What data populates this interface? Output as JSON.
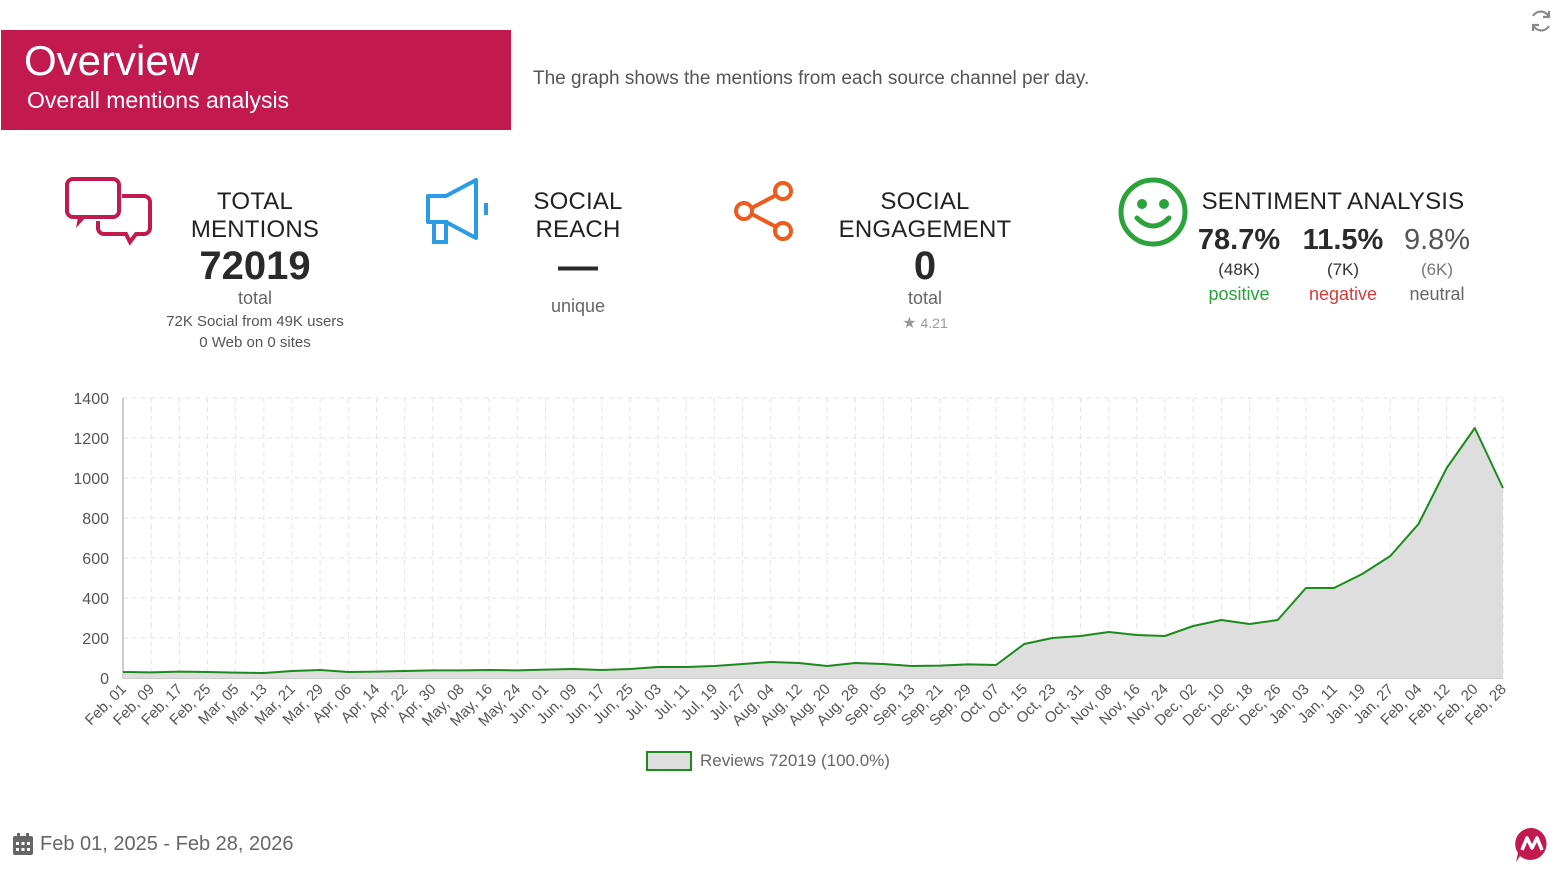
{
  "header": {
    "title": "Overview",
    "subtitle": "Overall mentions analysis",
    "description": "The graph shows the mentions from each source channel per day."
  },
  "kpis": {
    "total_mentions": {
      "label": "TOTAL MENTIONS",
      "value": "72019",
      "unit": "total",
      "social_count": "72K",
      "social_text": "Social from",
      "users_count": "49K",
      "users_text": "users",
      "web_count": "0",
      "web_text": "Web on",
      "sites_count": "0",
      "sites_text": "sites"
    },
    "social_reach": {
      "label": "SOCIAL REACH",
      "value": "—",
      "unit": "unique"
    },
    "social_engagement": {
      "label": "SOCIAL ENGAGEMENT",
      "value": "0",
      "unit": "total",
      "rating": "4.21"
    },
    "sentiment": {
      "label": "SENTIMENT ANALYSIS",
      "positive": {
        "pct": "78.7%",
        "count": "(48K)",
        "label": "positive",
        "color": "#2aa33a"
      },
      "negative": {
        "pct": "11.5%",
        "count": "(7K)",
        "label": "negative",
        "color": "#d93a3a"
      },
      "neutral": {
        "pct": "9.8%",
        "count": "(6K)",
        "label": "neutral",
        "color": "#666666"
      }
    }
  },
  "icons": {
    "refresh": "refresh-icon",
    "mentions": "chat-bubbles-icon",
    "reach": "megaphone-icon",
    "engagement": "share-icon",
    "sentiment": "smiley-icon",
    "calendar": "calendar-icon",
    "brand": "brand-logo-icon"
  },
  "chart_data": {
    "type": "area",
    "ylim": [
      0,
      1400
    ],
    "yticks": [
      0,
      200,
      400,
      600,
      800,
      1000,
      1200,
      1400
    ],
    "x": [
      "Feb, 01",
      "Feb, 09",
      "Feb, 17",
      "Feb, 25",
      "Mar, 05",
      "Mar, 13",
      "Mar, 21",
      "Mar, 29",
      "Apr, 06",
      "Apr, 14",
      "Apr, 22",
      "Apr, 30",
      "May, 08",
      "May, 16",
      "May, 24",
      "Jun, 01",
      "Jun, 09",
      "Jun, 17",
      "Jun, 25",
      "Jul, 03",
      "Jul, 11",
      "Jul, 19",
      "Jul, 27",
      "Aug, 04",
      "Aug, 12",
      "Aug, 20",
      "Aug, 28",
      "Sep, 05",
      "Sep, 13",
      "Sep, 21",
      "Sep, 29",
      "Oct, 07",
      "Oct, 15",
      "Oct, 23",
      "Oct, 31",
      "Nov, 08",
      "Nov, 16",
      "Nov, 24",
      "Dec, 02",
      "Dec, 10",
      "Dec, 18",
      "Dec, 26",
      "Jan, 03",
      "Jan, 11",
      "Jan, 19",
      "Jan, 27",
      "Feb, 04",
      "Feb, 12",
      "Feb, 20",
      "Feb, 28"
    ],
    "series": [
      {
        "name": "Reviews",
        "legend": "Reviews 72019 (100.0%)",
        "line_color": "#1c8a1c",
        "fill_color": "#dedede",
        "values": [
          30,
          28,
          32,
          30,
          27,
          25,
          35,
          40,
          30,
          32,
          35,
          38,
          38,
          40,
          38,
          42,
          45,
          40,
          45,
          55,
          55,
          60,
          70,
          80,
          75,
          60,
          75,
          70,
          60,
          62,
          68,
          65,
          170,
          200,
          210,
          230,
          215,
          210,
          260,
          290,
          270,
          290,
          450,
          450,
          520,
          610,
          770,
          1050,
          1250,
          950
        ]
      }
    ],
    "grid": true,
    "legend_position": "bottom-center"
  },
  "footer": {
    "date_range": "Feb 01, 2025 - Feb 28, 2026"
  }
}
